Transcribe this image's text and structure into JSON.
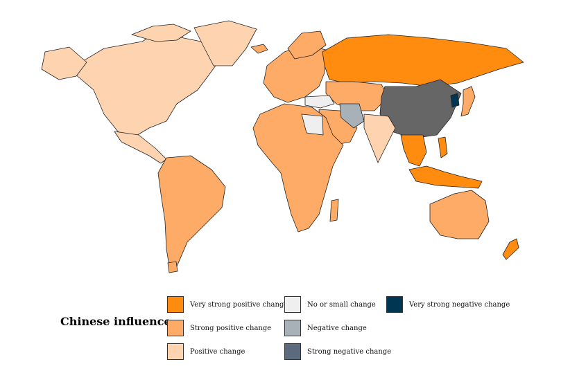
{
  "legend": {
    "title": "Chinese influence:",
    "items": [
      {
        "id": "vsp",
        "label": "Very strong positive change",
        "color": "#ff8c0f"
      },
      {
        "id": "sp",
        "label": "Strong positive change",
        "color": "#fdab66"
      },
      {
        "id": "p",
        "label": "Positive change",
        "color": "#fdd3b0"
      },
      {
        "id": "ns",
        "label": "No or small change",
        "color": "#efefef"
      },
      {
        "id": "n",
        "label": "Negative change",
        "color": "#a8b0b8"
      },
      {
        "id": "sn",
        "label": "Strong negative change",
        "color": "#5c6a7d"
      },
      {
        "id": "vsn",
        "label": "Very strong negative change",
        "color": "#003651"
      }
    ]
  },
  "colors": {
    "china": "#666666",
    "border": "#222222"
  },
  "regions": [
    {
      "name": "north-america",
      "category": "p"
    },
    {
      "name": "greenland",
      "category": "p"
    },
    {
      "name": "mexico",
      "category": "p"
    },
    {
      "name": "south-america",
      "category": "sp"
    },
    {
      "name": "europe",
      "category": "sp"
    },
    {
      "name": "russia",
      "category": "vsp"
    },
    {
      "name": "central-asia",
      "category": "sp"
    },
    {
      "name": "middle-east",
      "category": "sp"
    },
    {
      "name": "iran",
      "category": "n"
    },
    {
      "name": "turkey",
      "category": "ns"
    },
    {
      "name": "africa",
      "category": "sp"
    },
    {
      "name": "libya",
      "category": "ns"
    },
    {
      "name": "india",
      "category": "p"
    },
    {
      "name": "southeast-asia",
      "category": "vsp"
    },
    {
      "name": "indonesia",
      "category": "vsp"
    },
    {
      "name": "japan",
      "category": "sp"
    },
    {
      "name": "korea",
      "category": "vsn"
    },
    {
      "name": "australia",
      "category": "sp"
    },
    {
      "name": "new-zealand",
      "category": "vsp"
    },
    {
      "name": "china",
      "category": "china"
    }
  ]
}
